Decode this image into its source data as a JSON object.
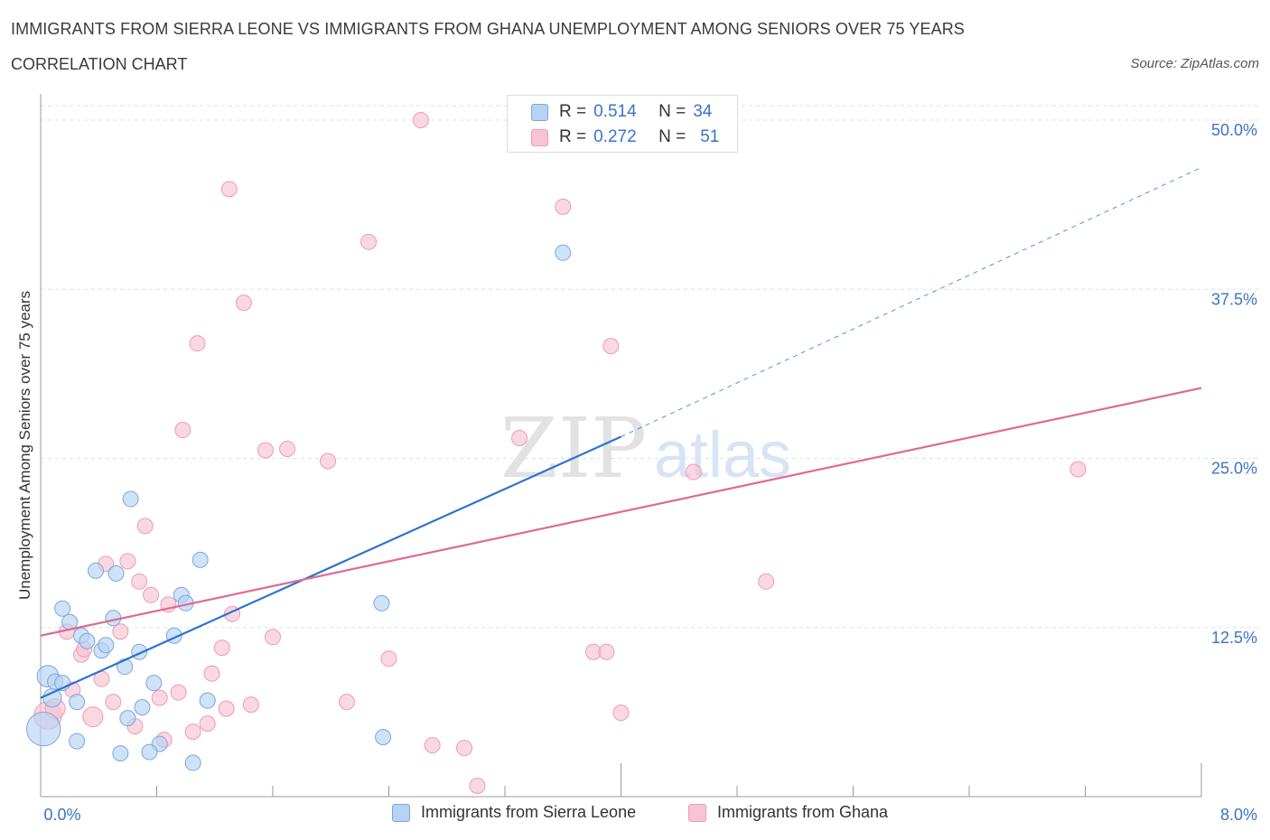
{
  "header": {
    "title": "IMMIGRANTS FROM SIERRA LEONE VS IMMIGRANTS FROM GHANA UNEMPLOYMENT AMONG SENIORS OVER 75 YEARS",
    "subtitle": "CORRELATION CHART",
    "source": "Source: ZipAtlas.com"
  },
  "legend": {
    "series1": {
      "r_label": "R =",
      "r_value": "0.514",
      "n_label": "N =",
      "n_value": "34"
    },
    "series2": {
      "r_label": "R =",
      "r_value": "0.272",
      "n_label": "N =",
      "n_value": "51"
    }
  },
  "watermark": {
    "zip": "ZIP",
    "atlas": "atlas"
  },
  "colors": {
    "blue_fill": "#b7d2f3",
    "blue_stroke": "#7aa7e0",
    "blue_line": "#2b74cf",
    "pink_fill": "#f8c3d3",
    "pink_stroke": "#ee9ab5",
    "pink_line": "#e06992",
    "axis_text": "#3b73c9",
    "grid": "#dde0e6"
  },
  "chart_data": {
    "type": "scatter",
    "title": "IMMIGRANTS FROM SIERRA LEONE VS IMMIGRANTS FROM GHANA UNEMPLOYMENT AMONG SENIORS OVER 75 YEARS",
    "xlabel": "",
    "ylabel": "Unemployment Among Seniors over 75 years",
    "xlim": [
      0,
      8
    ],
    "ylim": [
      0,
      50
    ],
    "x_tick_labels": [
      "0.0%",
      "8.0%"
    ],
    "y_tick_labels": [
      "12.5%",
      "25.0%",
      "37.5%",
      "50.0%"
    ],
    "y_ticks": [
      12.5,
      25,
      37.5,
      50
    ],
    "x_ticks": [
      0,
      0.8,
      1.6,
      2.4,
      3.2,
      4.0,
      4.8,
      5.6,
      6.4,
      7.2,
      8.0
    ],
    "series": [
      {
        "name": "Immigrants from Sierra Leone",
        "color": "blue",
        "trend": {
          "x0": 0.0,
          "y0": 7.3,
          "x1": 4.0,
          "y1": 26.6,
          "dash_to_x": 8.0,
          "dash_to_y": 46.5
        },
        "points": [
          [
            0.02,
            5.0,
            2.2
          ],
          [
            0.05,
            8.9,
            1.4
          ],
          [
            0.08,
            7.3,
            1.2
          ],
          [
            0.1,
            8.5,
            1.0
          ],
          [
            0.15,
            8.4,
            1.0
          ],
          [
            0.15,
            13.9,
            1.0
          ],
          [
            0.2,
            12.9,
            1.0
          ],
          [
            0.25,
            7.0,
            1.0
          ],
          [
            0.28,
            11.9,
            1.0
          ],
          [
            0.32,
            11.5,
            1.0
          ],
          [
            0.38,
            16.7,
            1.0
          ],
          [
            0.42,
            10.8,
            1.0
          ],
          [
            0.45,
            11.2,
            1.0
          ],
          [
            0.5,
            13.2,
            1.0
          ],
          [
            0.52,
            16.5,
            1.0
          ],
          [
            0.58,
            9.6,
            1.0
          ],
          [
            0.62,
            22.0,
            1.0
          ],
          [
            0.68,
            10.7,
            1.0
          ],
          [
            0.7,
            6.6,
            1.0
          ],
          [
            0.78,
            8.4,
            1.0
          ],
          [
            0.82,
            3.9,
            1.0
          ],
          [
            0.92,
            11.9,
            1.0
          ],
          [
            0.97,
            14.9,
            1.0
          ],
          [
            1.0,
            14.3,
            1.0
          ],
          [
            1.05,
            2.5,
            1.0
          ],
          [
            1.1,
            17.5,
            1.0
          ],
          [
            1.15,
            7.1,
            1.0
          ],
          [
            0.25,
            4.1,
            1.0
          ],
          [
            0.55,
            3.2,
            1.0
          ],
          [
            0.6,
            5.8,
            1.0
          ],
          [
            0.75,
            3.3,
            1.0
          ],
          [
            2.35,
            14.3,
            1.0
          ],
          [
            2.36,
            4.4,
            1.0
          ],
          [
            3.6,
            40.2,
            1.0
          ]
        ]
      },
      {
        "name": "Immigrants from Ghana",
        "color": "pink",
        "trend": {
          "x0": 0.0,
          "y0": 11.9,
          "x1": 8.0,
          "y1": 30.2
        },
        "points": [
          [
            0.05,
            6.0,
            1.8
          ],
          [
            0.1,
            6.5,
            1.3
          ],
          [
            0.18,
            12.2,
            1.0
          ],
          [
            0.22,
            7.9,
            1.0
          ],
          [
            0.28,
            10.5,
            1.0
          ],
          [
            0.3,
            10.9,
            1.0
          ],
          [
            0.36,
            5.9,
            1.3
          ],
          [
            0.42,
            8.7,
            1.0
          ],
          [
            0.45,
            17.2,
            1.0
          ],
          [
            0.5,
            7.0,
            1.0
          ],
          [
            0.55,
            12.2,
            1.0
          ],
          [
            0.6,
            17.4,
            1.0
          ],
          [
            0.65,
            5.2,
            1.0
          ],
          [
            0.68,
            15.9,
            1.0
          ],
          [
            0.72,
            20.0,
            1.0
          ],
          [
            0.76,
            14.9,
            1.0
          ],
          [
            0.82,
            7.3,
            1.0
          ],
          [
            0.85,
            4.2,
            1.0
          ],
          [
            0.88,
            14.2,
            1.0
          ],
          [
            0.95,
            7.7,
            1.0
          ],
          [
            0.98,
            27.1,
            1.0
          ],
          [
            1.05,
            4.8,
            1.0
          ],
          [
            1.08,
            33.5,
            1.0
          ],
          [
            1.15,
            5.4,
            1.0
          ],
          [
            1.18,
            9.1,
            1.0
          ],
          [
            1.25,
            11.0,
            1.0
          ],
          [
            1.28,
            6.5,
            1.0
          ],
          [
            1.32,
            13.5,
            1.0
          ],
          [
            1.3,
            44.9,
            1.0
          ],
          [
            1.4,
            36.5,
            1.0
          ],
          [
            1.45,
            6.8,
            1.0
          ],
          [
            1.55,
            25.6,
            1.0
          ],
          [
            1.6,
            11.8,
            1.0
          ],
          [
            1.7,
            25.7,
            1.0
          ],
          [
            1.98,
            24.8,
            1.0
          ],
          [
            2.11,
            7.0,
            1.0
          ],
          [
            2.26,
            41.0,
            1.0
          ],
          [
            2.4,
            10.2,
            1.0
          ],
          [
            2.62,
            50.0,
            1.0
          ],
          [
            2.7,
            3.8,
            1.0
          ],
          [
            2.92,
            3.6,
            1.0
          ],
          [
            3.01,
            0.8,
            1.0
          ],
          [
            3.3,
            26.5,
            1.0
          ],
          [
            3.6,
            43.6,
            1.0
          ],
          [
            3.81,
            10.7,
            1.0
          ],
          [
            3.9,
            10.7,
            1.0
          ],
          [
            3.93,
            33.3,
            1.0
          ],
          [
            4.0,
            6.2,
            1.0
          ],
          [
            4.5,
            24.0,
            1.0
          ],
          [
            5.0,
            15.9,
            1.0
          ],
          [
            7.15,
            24.2,
            1.0
          ]
        ]
      }
    ]
  },
  "bottom_legend": {
    "series1_label": "Immigrants from Sierra Leone",
    "series2_label": "Immigrants from Ghana"
  }
}
